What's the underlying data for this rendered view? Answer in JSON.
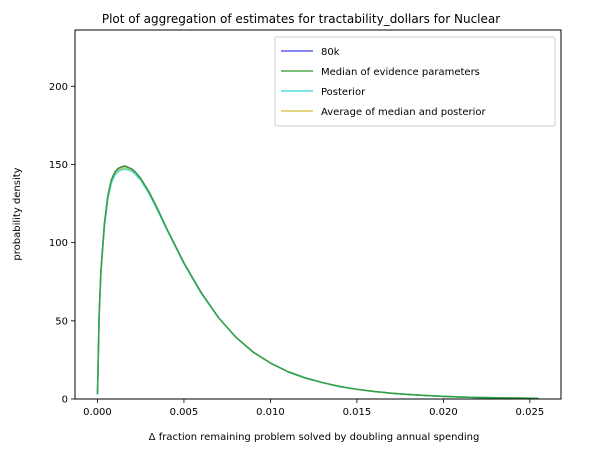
{
  "chart_data": {
    "type": "line",
    "title": "Plot of aggregation of estimates for tractability_dollars for Nuclear",
    "xlabel": "Δ fraction remaining problem solved by doubling annual spending",
    "ylabel": "probability density",
    "xlim": [
      -0.0013,
      0.0268
    ],
    "ylim": [
      0,
      236
    ],
    "xticks": [
      0.0,
      0.005,
      0.01,
      0.015,
      0.02,
      0.025
    ],
    "xtick_labels": [
      "0.000",
      "0.005",
      "0.010",
      "0.015",
      "0.020",
      "0.025"
    ],
    "yticks": [
      0,
      50,
      100,
      150,
      200
    ],
    "ytick_labels": [
      "0",
      "50",
      "100",
      "150",
      "200"
    ],
    "grid": false,
    "legend_position": "top-right",
    "x": [
      0.0,
      0.0001,
      0.0002,
      0.0004,
      0.0006,
      0.0008,
      0.001,
      0.0012,
      0.0014,
      0.0016,
      0.0018,
      0.002,
      0.0022,
      0.0025,
      0.003,
      0.0035,
      0.004,
      0.0045,
      0.005,
      0.006,
      0.007,
      0.008,
      0.009,
      0.01,
      0.011,
      0.012,
      0.013,
      0.014,
      0.015,
      0.016,
      0.017,
      0.018,
      0.019,
      0.02,
      0.021,
      0.022,
      0.023,
      0.024,
      0.025,
      0.0255
    ],
    "series": [
      {
        "name": "80k",
        "color": "#4444ee",
        "opacity": 0.85,
        "values": [
          3,
          55,
          82,
          112,
          130,
          140,
          145,
          147.5,
          148.5,
          149,
          148,
          147,
          145,
          141,
          132,
          121,
          109,
          98,
          87,
          68,
          52,
          39.5,
          30,
          23,
          17.5,
          13.5,
          10.5,
          8,
          6.2,
          4.8,
          3.7,
          2.9,
          2.2,
          1.7,
          1.3,
          1.0,
          0.8,
          0.6,
          0.45,
          0.4
        ]
      },
      {
        "name": "Median of evidence parameters",
        "color": "#2e9a2e",
        "opacity": 0.85,
        "values": [
          3,
          55,
          82,
          112,
          130,
          140,
          145,
          147.5,
          148.5,
          149,
          148,
          147,
          145,
          141,
          132,
          121,
          109,
          98,
          87,
          68,
          52,
          39.5,
          30,
          23,
          17.5,
          13.5,
          10.5,
          8,
          6.2,
          4.8,
          3.7,
          2.9,
          2.2,
          1.7,
          1.3,
          1.0,
          0.8,
          0.6,
          0.45,
          0.4
        ]
      },
      {
        "name": "Posterior",
        "color": "#33d6d6",
        "opacity": 0.85,
        "values": [
          3,
          54,
          81,
          110,
          128,
          138,
          143,
          145.5,
          146.5,
          147,
          146.5,
          145.5,
          143.5,
          140,
          131,
          120,
          108.5,
          97.5,
          86.5,
          67.5,
          52,
          39.5,
          30,
          23,
          17.5,
          13.5,
          10.5,
          8,
          6.2,
          4.8,
          3.7,
          2.9,
          2.2,
          1.7,
          1.3,
          1.0,
          0.8,
          0.6,
          0.45,
          0.4
        ]
      },
      {
        "name": "Average of median and posterior",
        "color": "#d4c33a",
        "opacity": 0.85,
        "values": [
          3,
          54.5,
          81.5,
          111,
          129,
          139,
          144,
          146.5,
          147.5,
          148,
          147.2,
          146.2,
          144.2,
          140.5,
          131.5,
          120.5,
          108.8,
          97.8,
          86.8,
          67.8,
          52,
          39.5,
          30,
          23,
          17.5,
          13.5,
          10.5,
          8,
          6.2,
          4.8,
          3.7,
          2.9,
          2.2,
          1.7,
          1.3,
          1.0,
          0.8,
          0.6,
          0.45,
          0.4
        ]
      }
    ],
    "draw_order": [
      0,
      3,
      2,
      1
    ]
  }
}
